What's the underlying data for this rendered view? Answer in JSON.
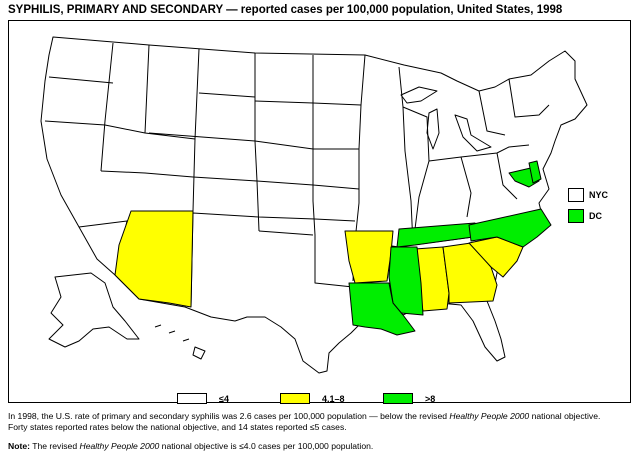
{
  "title": "SYPHILIS, PRIMARY AND SECONDARY — reported cases per 100,000 population, United States, 1998",
  "colors": {
    "none": "#ffffff",
    "mid": "#ffff00",
    "high": "#00ee00"
  },
  "inset_keys": [
    {
      "label": "NYC",
      "category": "none"
    },
    {
      "label": "DC",
      "category": "high"
    }
  ],
  "legend": [
    {
      "label": "≤4",
      "category": "none"
    },
    {
      "label": "4.1–8",
      "category": "mid"
    },
    {
      "label": ">8",
      "category": "high"
    }
  ],
  "highlighted_states": {
    "mid": [
      "Arizona",
      "Arkansas",
      "Alabama",
      "Georgia",
      "South Carolina"
    ],
    "high": [
      "Louisiana",
      "Mississippi",
      "Tennessee",
      "North Carolina",
      "Maryland",
      "Delaware"
    ]
  },
  "footnote": {
    "line1_a": "In 1998, the U.S. rate of primary and secondary syphilis was 2.6 cases per 100,000 population — below the revised ",
    "line1_italic": "Healthy People 2000",
    "line1_b": " national objective.",
    "line2": "Forty states reported rates below the national objective, and 14 states reported ≤5 cases.",
    "note_label": "Note:",
    "note_a": " The revised ",
    "note_italic": "Healthy People 2000",
    "note_b": "  national objective is ≤4.0 cases per 100,000 population."
  }
}
